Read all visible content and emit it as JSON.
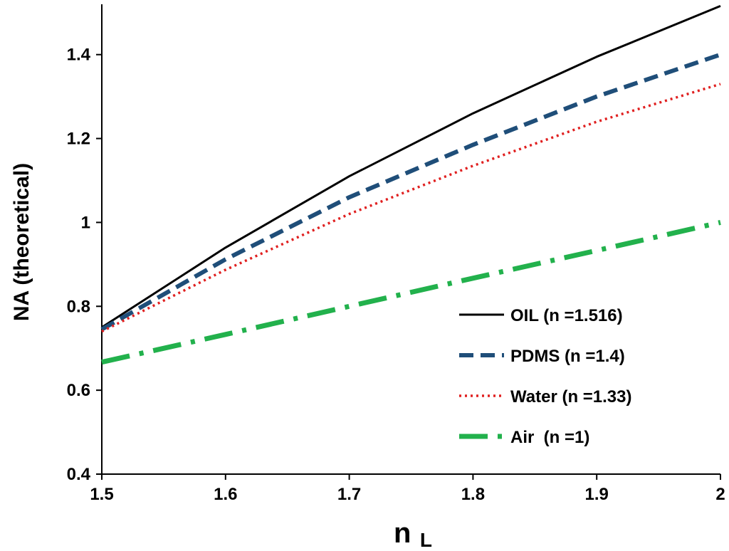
{
  "chart_data": {
    "type": "line",
    "title": "",
    "xlabel": "n",
    "xlabel_subscript": "L",
    "ylabel": "NA (theoretical)",
    "xlim": [
      1.5,
      2.0
    ],
    "ylim": [
      0.4,
      1.52
    ],
    "x_ticks": [
      "1.5",
      "1.6",
      "1.7",
      "1.8",
      "1.9",
      "2"
    ],
    "y_ticks": [
      "0.4",
      "0.6",
      "0.8",
      "1",
      "1.2",
      "1.4"
    ],
    "grid": false,
    "legend_position": "bottom-right",
    "x": [
      1.5,
      1.6,
      1.7,
      1.8,
      1.9,
      2.0
    ],
    "series": [
      {
        "name": "OIL (n =1.516)",
        "values": [
          0.75,
          0.94,
          1.11,
          1.26,
          1.395,
          1.516
        ],
        "color": "#000000",
        "style": "solid"
      },
      {
        "name": "PDMS (n =1.4)",
        "values": [
          0.745,
          0.912,
          1.06,
          1.185,
          1.3,
          1.4
        ],
        "color": "#1f4e79",
        "style": "dashed"
      },
      {
        "name": "Water (n =1.33)",
        "values": [
          0.74,
          0.887,
          1.02,
          1.135,
          1.24,
          1.33
        ],
        "color": "#e02020",
        "style": "dotted"
      },
      {
        "name": "Air  (n =1)",
        "values": [
          0.667,
          0.733,
          0.8,
          0.867,
          0.933,
          1.0
        ],
        "color": "#22b14c",
        "style": "dash-dot"
      }
    ]
  }
}
